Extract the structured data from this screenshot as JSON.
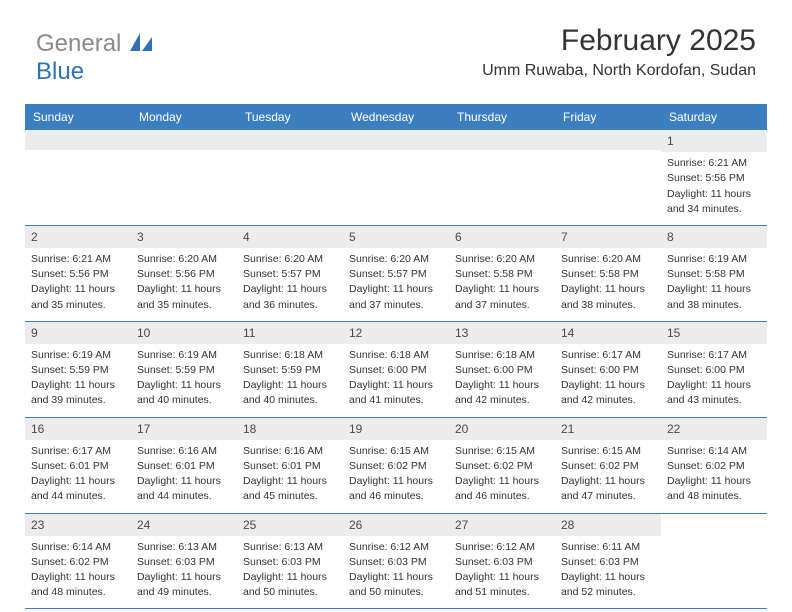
{
  "brand": {
    "part1": "General",
    "part2": "Blue"
  },
  "title": "February 2025",
  "location": "Umm Ruwaba, North Kordofan, Sudan",
  "header_bg": "#3b7fbf",
  "daynum_bg": "#ececec",
  "border_color": "#3b7fbf",
  "text_color": "#333333",
  "font_family": "Arial",
  "title_fontsize": 30,
  "location_fontsize": 16,
  "dow_fontsize": 12,
  "cell_fontsize": 10.5,
  "days_of_week": [
    "Sunday",
    "Monday",
    "Tuesday",
    "Wednesday",
    "Thursday",
    "Friday",
    "Saturday"
  ],
  "weeks": [
    [
      null,
      null,
      null,
      null,
      null,
      null,
      {
        "n": "1",
        "sr": "Sunrise: 6:21 AM",
        "ss": "Sunset: 5:56 PM",
        "d1": "Daylight: 11 hours",
        "d2": "and 34 minutes."
      }
    ],
    [
      {
        "n": "2",
        "sr": "Sunrise: 6:21 AM",
        "ss": "Sunset: 5:56 PM",
        "d1": "Daylight: 11 hours",
        "d2": "and 35 minutes."
      },
      {
        "n": "3",
        "sr": "Sunrise: 6:20 AM",
        "ss": "Sunset: 5:56 PM",
        "d1": "Daylight: 11 hours",
        "d2": "and 35 minutes."
      },
      {
        "n": "4",
        "sr": "Sunrise: 6:20 AM",
        "ss": "Sunset: 5:57 PM",
        "d1": "Daylight: 11 hours",
        "d2": "and 36 minutes."
      },
      {
        "n": "5",
        "sr": "Sunrise: 6:20 AM",
        "ss": "Sunset: 5:57 PM",
        "d1": "Daylight: 11 hours",
        "d2": "and 37 minutes."
      },
      {
        "n": "6",
        "sr": "Sunrise: 6:20 AM",
        "ss": "Sunset: 5:58 PM",
        "d1": "Daylight: 11 hours",
        "d2": "and 37 minutes."
      },
      {
        "n": "7",
        "sr": "Sunrise: 6:20 AM",
        "ss": "Sunset: 5:58 PM",
        "d1": "Daylight: 11 hours",
        "d2": "and 38 minutes."
      },
      {
        "n": "8",
        "sr": "Sunrise: 6:19 AM",
        "ss": "Sunset: 5:58 PM",
        "d1": "Daylight: 11 hours",
        "d2": "and 38 minutes."
      }
    ],
    [
      {
        "n": "9",
        "sr": "Sunrise: 6:19 AM",
        "ss": "Sunset: 5:59 PM",
        "d1": "Daylight: 11 hours",
        "d2": "and 39 minutes."
      },
      {
        "n": "10",
        "sr": "Sunrise: 6:19 AM",
        "ss": "Sunset: 5:59 PM",
        "d1": "Daylight: 11 hours",
        "d2": "and 40 minutes."
      },
      {
        "n": "11",
        "sr": "Sunrise: 6:18 AM",
        "ss": "Sunset: 5:59 PM",
        "d1": "Daylight: 11 hours",
        "d2": "and 40 minutes."
      },
      {
        "n": "12",
        "sr": "Sunrise: 6:18 AM",
        "ss": "Sunset: 6:00 PM",
        "d1": "Daylight: 11 hours",
        "d2": "and 41 minutes."
      },
      {
        "n": "13",
        "sr": "Sunrise: 6:18 AM",
        "ss": "Sunset: 6:00 PM",
        "d1": "Daylight: 11 hours",
        "d2": "and 42 minutes."
      },
      {
        "n": "14",
        "sr": "Sunrise: 6:17 AM",
        "ss": "Sunset: 6:00 PM",
        "d1": "Daylight: 11 hours",
        "d2": "and 42 minutes."
      },
      {
        "n": "15",
        "sr": "Sunrise: 6:17 AM",
        "ss": "Sunset: 6:00 PM",
        "d1": "Daylight: 11 hours",
        "d2": "and 43 minutes."
      }
    ],
    [
      {
        "n": "16",
        "sr": "Sunrise: 6:17 AM",
        "ss": "Sunset: 6:01 PM",
        "d1": "Daylight: 11 hours",
        "d2": "and 44 minutes."
      },
      {
        "n": "17",
        "sr": "Sunrise: 6:16 AM",
        "ss": "Sunset: 6:01 PM",
        "d1": "Daylight: 11 hours",
        "d2": "and 44 minutes."
      },
      {
        "n": "18",
        "sr": "Sunrise: 6:16 AM",
        "ss": "Sunset: 6:01 PM",
        "d1": "Daylight: 11 hours",
        "d2": "and 45 minutes."
      },
      {
        "n": "19",
        "sr": "Sunrise: 6:15 AM",
        "ss": "Sunset: 6:02 PM",
        "d1": "Daylight: 11 hours",
        "d2": "and 46 minutes."
      },
      {
        "n": "20",
        "sr": "Sunrise: 6:15 AM",
        "ss": "Sunset: 6:02 PM",
        "d1": "Daylight: 11 hours",
        "d2": "and 46 minutes."
      },
      {
        "n": "21",
        "sr": "Sunrise: 6:15 AM",
        "ss": "Sunset: 6:02 PM",
        "d1": "Daylight: 11 hours",
        "d2": "and 47 minutes."
      },
      {
        "n": "22",
        "sr": "Sunrise: 6:14 AM",
        "ss": "Sunset: 6:02 PM",
        "d1": "Daylight: 11 hours",
        "d2": "and 48 minutes."
      }
    ],
    [
      {
        "n": "23",
        "sr": "Sunrise: 6:14 AM",
        "ss": "Sunset: 6:02 PM",
        "d1": "Daylight: 11 hours",
        "d2": "and 48 minutes."
      },
      {
        "n": "24",
        "sr": "Sunrise: 6:13 AM",
        "ss": "Sunset: 6:03 PM",
        "d1": "Daylight: 11 hours",
        "d2": "and 49 minutes."
      },
      {
        "n": "25",
        "sr": "Sunrise: 6:13 AM",
        "ss": "Sunset: 6:03 PM",
        "d1": "Daylight: 11 hours",
        "d2": "and 50 minutes."
      },
      {
        "n": "26",
        "sr": "Sunrise: 6:12 AM",
        "ss": "Sunset: 6:03 PM",
        "d1": "Daylight: 11 hours",
        "d2": "and 50 minutes."
      },
      {
        "n": "27",
        "sr": "Sunrise: 6:12 AM",
        "ss": "Sunset: 6:03 PM",
        "d1": "Daylight: 11 hours",
        "d2": "and 51 minutes."
      },
      {
        "n": "28",
        "sr": "Sunrise: 6:11 AM",
        "ss": "Sunset: 6:03 PM",
        "d1": "Daylight: 11 hours",
        "d2": "and 52 minutes."
      },
      null
    ]
  ]
}
